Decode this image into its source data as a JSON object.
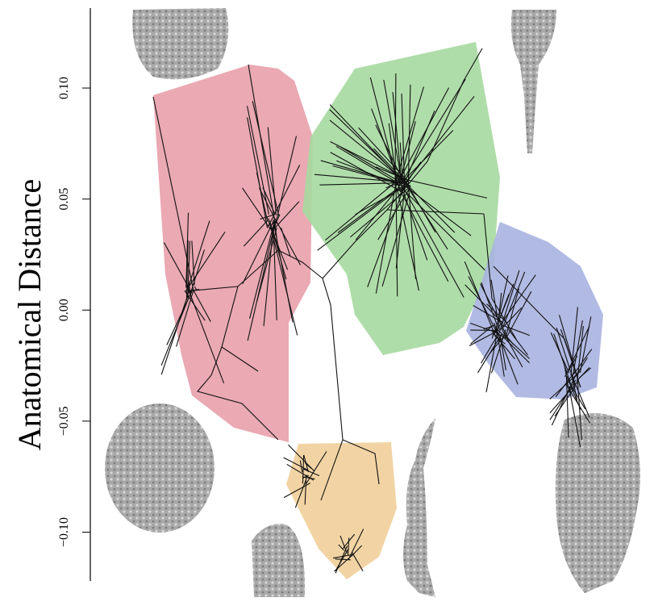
{
  "chart_data": {
    "type": "phylomorphospace",
    "y_label": "Anatomical Distance",
    "ylim": [
      -0.122,
      0.136
    ],
    "yticks": [
      {
        "value": -0.1,
        "label": "−0.10"
      },
      {
        "value": -0.05,
        "label": "−0.05"
      },
      {
        "value": 0,
        "label": "0.00"
      },
      {
        "value": 0.05,
        "label": "0.05"
      },
      {
        "value": 0.1,
        "label": "0.10"
      }
    ]
  }
}
